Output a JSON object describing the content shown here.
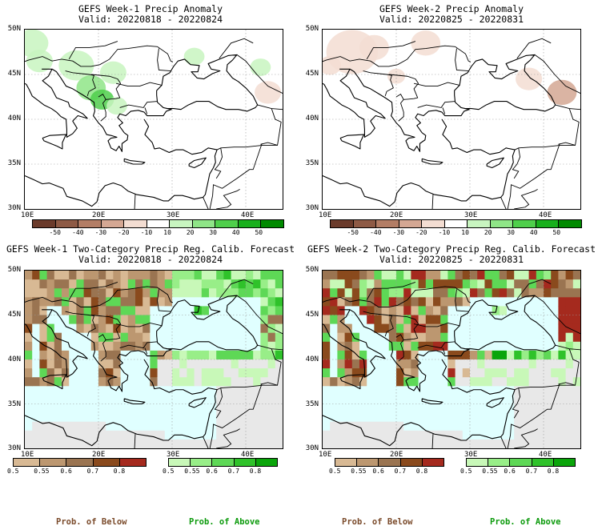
{
  "panels": [
    {
      "title": "GEFS Week-1 Precip Anomaly",
      "valid": "Valid: 20220818 - 20220824",
      "kind": "anomaly",
      "pattern": "week1_anom",
      "lat_labels": [
        "50N",
        "45N",
        "40N",
        "35N",
        "30N"
      ],
      "lon_labels": [
        "10E",
        "20E",
        "30E",
        "40E"
      ]
    },
    {
      "title": "GEFS Week-2 Precip Anomaly",
      "valid": "Valid: 20220825 - 20220831",
      "kind": "anomaly",
      "pattern": "week2_anom",
      "lat_labels": [
        "50N",
        "45N",
        "40N",
        "35N",
        "30N"
      ],
      "lon_labels": [
        "10E",
        "20E",
        "30E",
        "40E"
      ]
    },
    {
      "title": "GEFS Week-1 Two-Category Precip Reg. Calib. Forecast",
      "valid": "Valid: 20220818 - 20220824",
      "kind": "probability",
      "pattern": "week1_prob",
      "lat_labels": [
        "50N",
        "45N",
        "40N",
        "35N",
        "30N"
      ],
      "lon_labels": [
        "10E",
        "20E",
        "30E",
        "40E"
      ]
    },
    {
      "title": "GEFS Week-2 Two-Category Precip Reg. Calib. Forecast",
      "valid": "Valid: 20220825 - 20220831",
      "kind": "probability",
      "pattern": "week2_prob",
      "lat_labels": [
        "50N",
        "45N",
        "40N",
        "35N",
        "30N"
      ],
      "lon_labels": [
        "10E",
        "20E",
        "30E",
        "40E"
      ]
    }
  ],
  "anomaly_colorbar": {
    "ticks": [
      "-50",
      "-40",
      "-30",
      "-20",
      "-10",
      "10",
      "20",
      "30",
      "40",
      "50"
    ],
    "colors": [
      "#6b3b2b",
      "#8e5a45",
      "#b37d65",
      "#d4a793",
      "#f3ddd2",
      "#ffffff",
      "#c8f5c0",
      "#8fe587",
      "#4fcf4b",
      "#18b01c",
      "#008a00"
    ]
  },
  "prob_below_colorbar": {
    "ticks": [
      "0.5",
      "0.55",
      "0.6",
      "0.7",
      "0.8"
    ],
    "colors": [
      "#d8b994",
      "#bc9770",
      "#9a7451",
      "#8a4a1d",
      "#a52a1e"
    ]
  },
  "prob_above_colorbar": {
    "ticks": [
      "0.5",
      "0.55",
      "0.6",
      "0.7",
      "0.8"
    ],
    "colors": [
      "#c8f8b8",
      "#98ee88",
      "#5ed856",
      "#2fc22a",
      "#0aa50a"
    ]
  },
  "map_colors": {
    "sea": "#e0ffff",
    "outside": "#e8e8e8"
  },
  "footer": [
    {
      "label": "Prob. of Below",
      "color": "#7a4a2a"
    },
    {
      "label": "Prob. of Above",
      "color": "#0b9a0b"
    },
    {
      "label": "Prob. of Below",
      "color": "#7a4a2a"
    },
    {
      "label": "Prob. of Above",
      "color": "#0b9a0b"
    }
  ]
}
